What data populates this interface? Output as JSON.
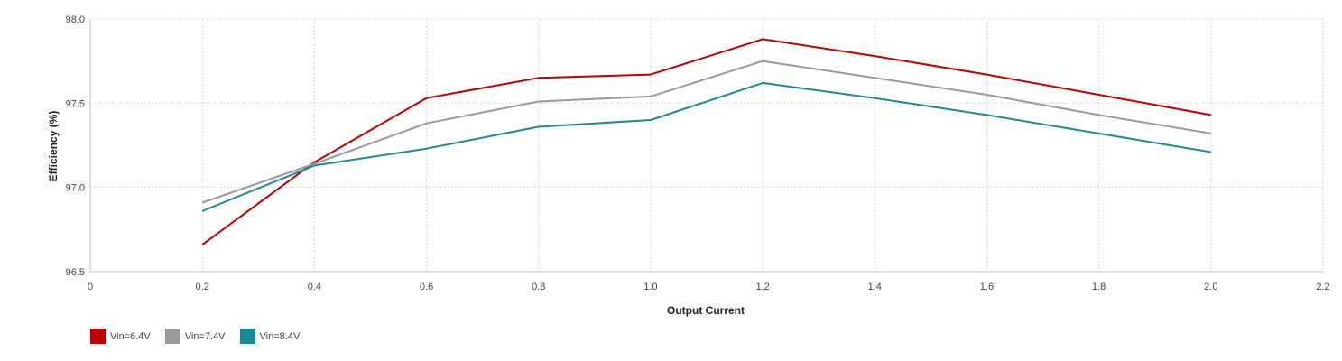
{
  "chart_data": {
    "type": "line",
    "xlabel": "Output Current",
    "ylabel": "Efficiency (%)",
    "xlim": [
      0,
      2.2
    ],
    "ylim": [
      96.5,
      98.0
    ],
    "x_ticks": [
      "0",
      "0.2",
      "0.4",
      "0.6",
      "0.8",
      "1.0",
      "1.2",
      "1.4",
      "1.6",
      "1.8",
      "2.0",
      "2.2"
    ],
    "y_ticks": [
      "96.5",
      "97.0",
      "97.5",
      "98.0"
    ],
    "grid": true,
    "legend_position": "bottom-left",
    "x": [
      0.2,
      0.4,
      0.6,
      0.8,
      1.0,
      1.2,
      1.4,
      1.6,
      1.8,
      2.0
    ],
    "series": [
      {
        "name": "Vin=6.4V",
        "color": "#c00000",
        "values": [
          96.66,
          97.15,
          97.53,
          97.65,
          97.67,
          97.88,
          97.78,
          97.67,
          97.55,
          97.43
        ]
      },
      {
        "name": "Vin=7.4V",
        "color": "#999999",
        "values": [
          96.91,
          97.14,
          97.38,
          97.51,
          97.54,
          97.75,
          97.65,
          97.55,
          97.43,
          97.32
        ]
      },
      {
        "name": "Vin=8.4V",
        "color": "#1a8a96",
        "values": [
          96.86,
          97.13,
          97.23,
          97.36,
          97.4,
          97.62,
          97.53,
          97.43,
          97.32,
          97.21
        ]
      }
    ]
  }
}
